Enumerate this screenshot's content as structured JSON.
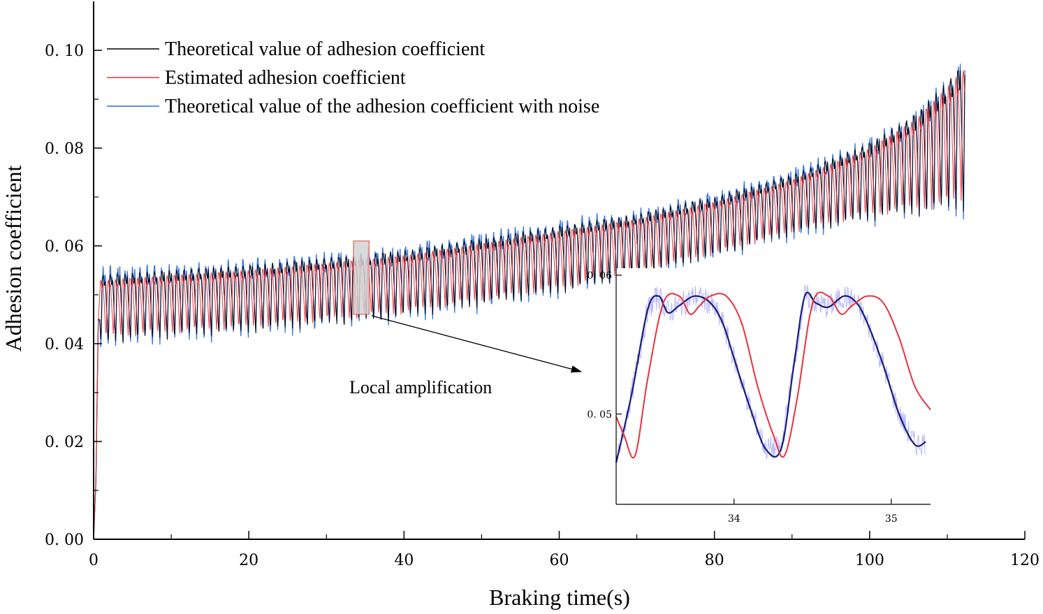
{
  "chart_data": {
    "type": "line",
    "title": "",
    "xlabel": "Braking time(s)",
    "ylabel": "Adhesion coefficient",
    "xlim": [
      0,
      120
    ],
    "ylim": [
      0,
      0.11
    ],
    "x_ticks": [
      0,
      20,
      40,
      60,
      80,
      100,
      120
    ],
    "y_ticks": [
      0,
      0.02,
      0.04,
      0.06,
      0.08,
      0.1
    ],
    "x_tick_labels": [
      "0",
      "20",
      "40",
      "60",
      "80",
      "100",
      "120"
    ],
    "y_tick_labels": [
      "0. 00",
      "0. 02",
      "0. 04",
      "0. 06",
      "0. 08",
      "0. 10"
    ],
    "series": [
      {
        "name": "Theoretical value of adhesion coefficient",
        "color": "#000000",
        "envelope_x": [
          1,
          10,
          20,
          30,
          40,
          50,
          60,
          70,
          80,
          90,
          100,
          106,
          112
        ],
        "envelope_upper": [
          0.054,
          0.055,
          0.056,
          0.0575,
          0.059,
          0.0615,
          0.064,
          0.0665,
          0.07,
          0.0745,
          0.081,
          0.087,
          0.097
        ],
        "envelope_lower": [
          0.04,
          0.041,
          0.042,
          0.0435,
          0.045,
          0.0475,
          0.05,
          0.0535,
          0.0575,
          0.062,
          0.065,
          0.066,
          0.067
        ]
      },
      {
        "name": "Estimated  adhesion coefficient",
        "color": "#e8323c",
        "envelope_x": [
          1,
          10,
          20,
          30,
          40,
          50,
          60,
          70,
          80,
          90,
          100,
          106,
          112
        ],
        "envelope_upper": [
          0.053,
          0.054,
          0.055,
          0.0565,
          0.058,
          0.0605,
          0.063,
          0.0655,
          0.069,
          0.0735,
          0.08,
          0.086,
          0.096
        ],
        "envelope_lower": [
          0.041,
          0.042,
          0.043,
          0.0445,
          0.046,
          0.0485,
          0.051,
          0.0545,
          0.058,
          0.0625,
          0.066,
          0.067,
          0.068
        ]
      },
      {
        "name": "Theoretical value of the adhesion coefficient with noise",
        "color": "#2e6fd9",
        "envelope_x": [
          1,
          10,
          20,
          30,
          40,
          50,
          60,
          70,
          80,
          90,
          100,
          106,
          112
        ],
        "envelope_upper": [
          0.055,
          0.0555,
          0.0565,
          0.058,
          0.0595,
          0.062,
          0.0645,
          0.067,
          0.0705,
          0.075,
          0.0815,
          0.0875,
          0.0975
        ],
        "envelope_lower": [
          0.039,
          0.0405,
          0.0415,
          0.043,
          0.0445,
          0.047,
          0.0495,
          0.053,
          0.057,
          0.0615,
          0.0645,
          0.0655,
          0.066
        ]
      }
    ],
    "legend_position": "top-left",
    "annotation": "Local amplification",
    "zoom_region": {
      "x": [
        33.5,
        35.5
      ],
      "y": [
        0.046,
        0.061
      ]
    },
    "inset": {
      "xlim": [
        33.25,
        35.25
      ],
      "ylim": [
        0.0435,
        0.0605
      ],
      "x_ticks": [
        34,
        35
      ],
      "x_tick_labels": [
        "34",
        "35"
      ],
      "y_ticks": [
        0.05,
        0.06
      ],
      "y_tick_labels": [
        "0. 05",
        "0. 06"
      ],
      "theoretical": {
        "x": [
          33.25,
          33.35,
          33.45,
          33.52,
          33.58,
          33.65,
          33.75,
          33.85,
          33.93,
          34.0,
          34.1,
          34.2,
          34.3,
          34.38,
          34.45,
          34.52,
          34.6,
          34.7,
          34.78,
          34.85,
          34.95,
          35.05,
          35.15,
          35.22
        ],
        "y": [
          0.0465,
          0.0515,
          0.0575,
          0.0585,
          0.0573,
          0.0578,
          0.0585,
          0.058,
          0.0565,
          0.054,
          0.0505,
          0.0475,
          0.0475,
          0.0535,
          0.0585,
          0.058,
          0.0577,
          0.0585,
          0.058,
          0.0565,
          0.0535,
          0.05,
          0.0478,
          0.048
        ]
      },
      "estimated": {
        "x": [
          33.25,
          33.3,
          33.37,
          33.45,
          33.55,
          33.65,
          33.72,
          33.78,
          33.85,
          33.95,
          34.05,
          34.15,
          34.25,
          34.32,
          34.4,
          34.5,
          34.6,
          34.68,
          34.75,
          34.85,
          34.95,
          35.05,
          35.15,
          35.25
        ],
        "y": [
          0.0498,
          0.0485,
          0.047,
          0.0525,
          0.058,
          0.0585,
          0.0572,
          0.0578,
          0.0585,
          0.0585,
          0.0565,
          0.052,
          0.0485,
          0.047,
          0.051,
          0.058,
          0.0585,
          0.0572,
          0.0578,
          0.0585,
          0.058,
          0.0555,
          0.052,
          0.0503
        ]
      }
    }
  }
}
